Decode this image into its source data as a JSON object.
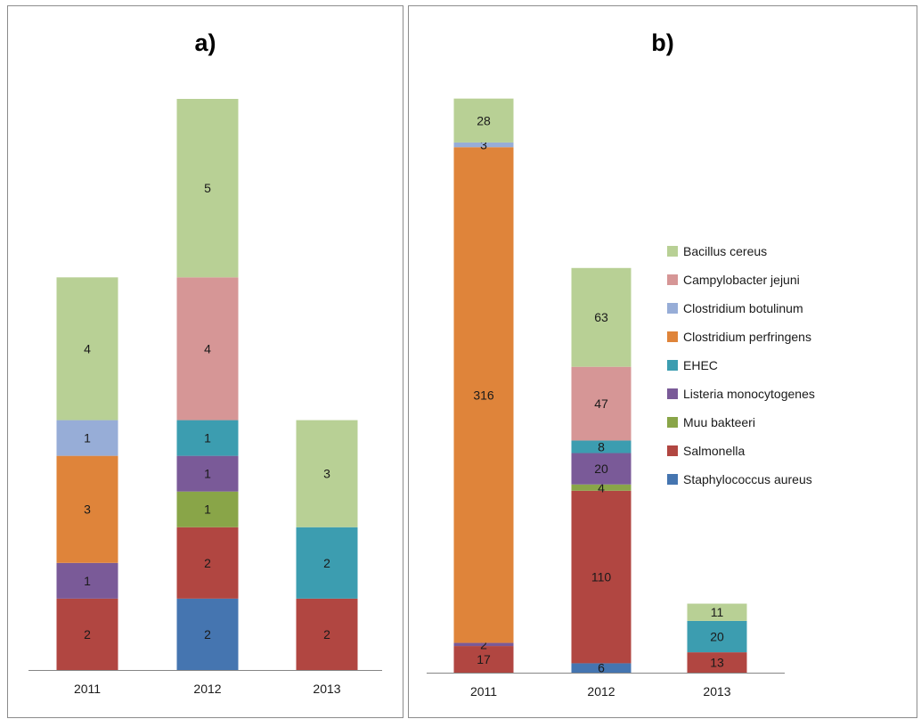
{
  "chart_data": [
    {
      "type": "bar",
      "stacked": true,
      "title": "a)",
      "xlabel": "",
      "ylabel": "",
      "categories": [
        "2011",
        "2012",
        "2013"
      ],
      "ylim": [
        0,
        16
      ],
      "grid": false,
      "series": [
        {
          "name": "Staphylococcus aureus",
          "color": "#4575B0",
          "values": [
            0,
            2,
            0
          ]
        },
        {
          "name": "Salmonella",
          "color": "#B14641",
          "values": [
            2,
            2,
            2
          ]
        },
        {
          "name": "Muu bakteeri",
          "color": "#89A548",
          "values": [
            0,
            1,
            0
          ]
        },
        {
          "name": "Listeria monocytogenes",
          "color": "#7A5A98",
          "values": [
            1,
            1,
            0
          ]
        },
        {
          "name": "EHEC",
          "color": "#3C9DB0",
          "values": [
            0,
            1,
            2
          ]
        },
        {
          "name": "Clostridium perfringens",
          "color": "#DF843A",
          "values": [
            3,
            0,
            0
          ]
        },
        {
          "name": "Clostridium botulinum",
          "color": "#97ADD7",
          "values": [
            1,
            0,
            0
          ]
        },
        {
          "name": "Campylobacter jejuni",
          "color": "#D69696",
          "values": [
            0,
            4,
            0
          ]
        },
        {
          "name": "Bacillus cereus",
          "color": "#B8D095",
          "values": [
            4,
            5,
            3
          ]
        }
      ]
    },
    {
      "type": "bar",
      "stacked": true,
      "title": "b)",
      "xlabel": "",
      "ylabel": "",
      "categories": [
        "2011",
        "2012",
        "2013"
      ],
      "ylim": [
        0,
        380
      ],
      "grid": false,
      "legend_position": "right",
      "series": [
        {
          "name": "Staphylococcus aureus",
          "color": "#4575B0",
          "values": [
            0,
            6,
            0
          ]
        },
        {
          "name": "Salmonella",
          "color": "#B14641",
          "values": [
            17,
            110,
            13
          ]
        },
        {
          "name": "Muu bakteeri",
          "color": "#89A548",
          "values": [
            0,
            4,
            0
          ]
        },
        {
          "name": "Listeria monocytogenes",
          "color": "#7A5A98",
          "values": [
            2,
            20,
            0
          ]
        },
        {
          "name": "EHEC",
          "color": "#3C9DB0",
          "values": [
            0,
            8,
            20
          ]
        },
        {
          "name": "Clostridium perfringens",
          "color": "#DF843A",
          "values": [
            316,
            0,
            0
          ]
        },
        {
          "name": "Clostridium botulinum",
          "color": "#97ADD7",
          "values": [
            3,
            0,
            0
          ]
        },
        {
          "name": "Campylobacter jejuni",
          "color": "#D69696",
          "values": [
            0,
            47,
            0
          ]
        },
        {
          "name": "Bacillus cereus",
          "color": "#B8D095",
          "values": [
            28,
            63,
            11
          ]
        }
      ],
      "legend": [
        "Bacillus cereus",
        "Campylobacter jejuni",
        "Clostridium botulinum",
        "Clostridium perfringens",
        "EHEC",
        "Listeria monocytogenes",
        "Muu bakteeri",
        "Salmonella",
        "Staphylococcus aureus"
      ]
    }
  ]
}
